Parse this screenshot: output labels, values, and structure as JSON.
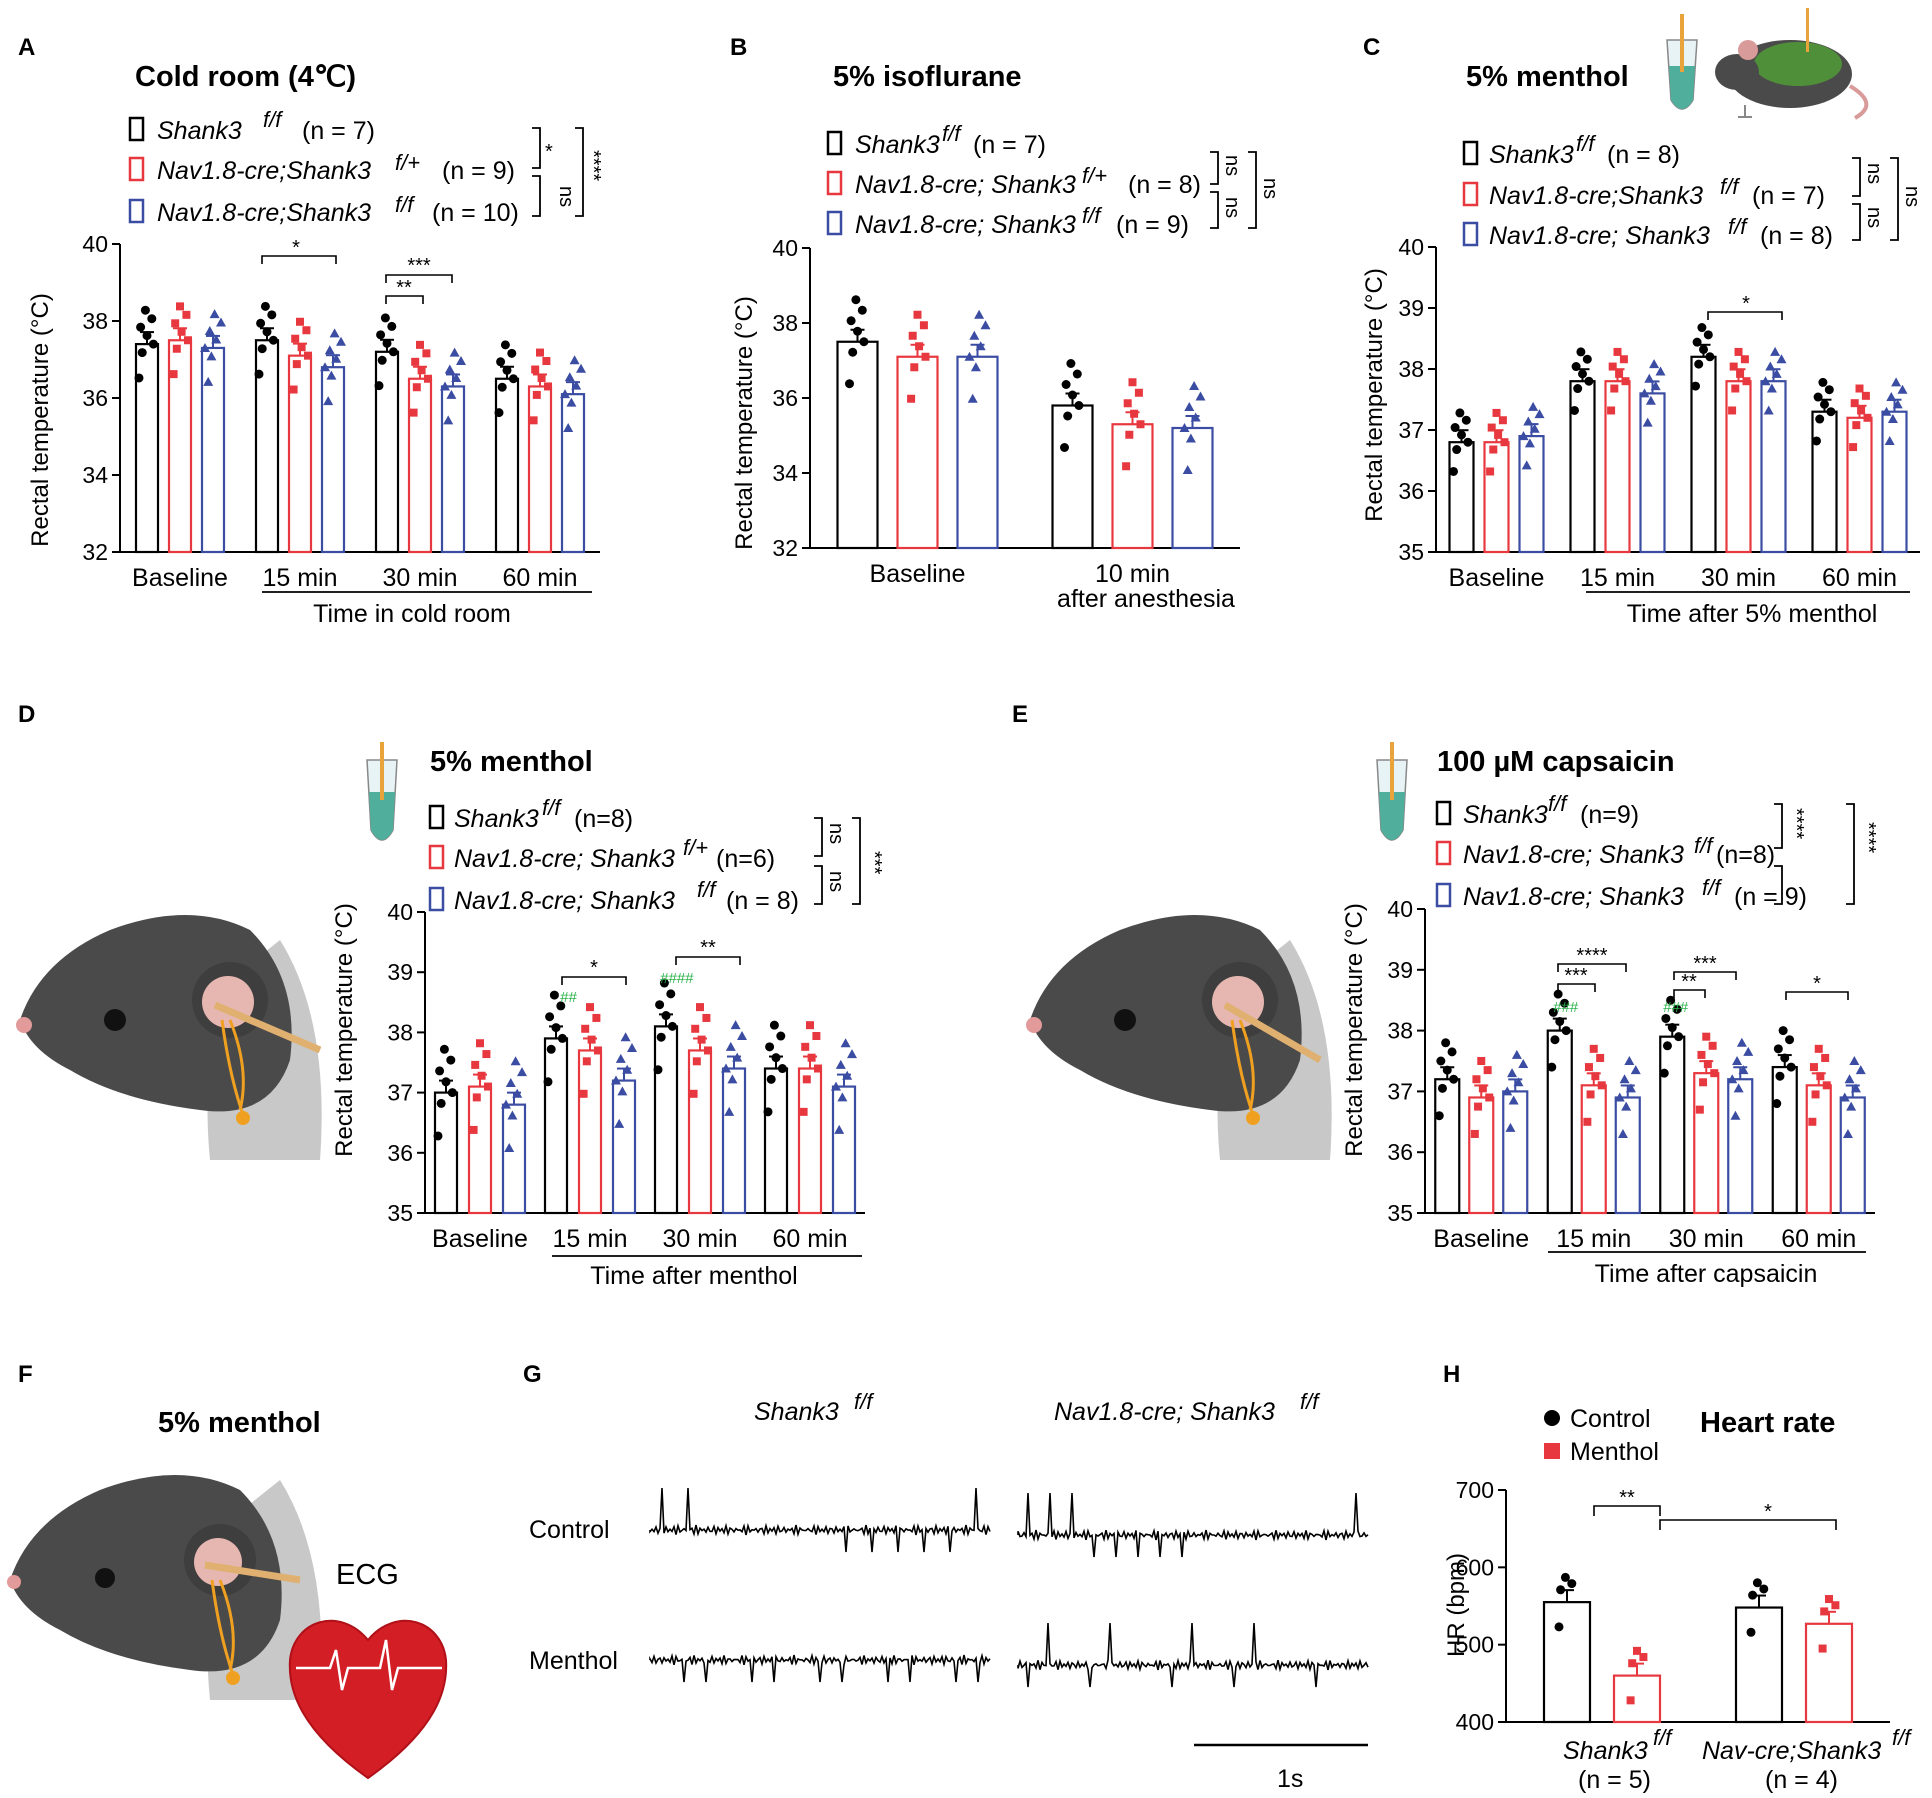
{
  "colors": {
    "black": "#000000",
    "red": "#e8383f",
    "blue": "#3b4ca3",
    "green": "#2bb34a"
  },
  "panels": {
    "A": {
      "label": "A",
      "title": "Cold room (4℃)",
      "legend": [
        {
          "gene": "Shank3",
          "sup": "f/f",
          "n": "(n = 7)"
        },
        {
          "gene": "Nav1.8-cre;Shank3",
          "sup": "f/+",
          "n": "(n = 9)"
        },
        {
          "gene": "Nav1.8-cre;Shank3",
          "sup": "f/f",
          "n": "(n = 10)"
        }
      ],
      "legend_sig": [
        "*",
        "ns",
        "****"
      ],
      "ylabel": "Rectal temperature (°C)",
      "xlabel": "Time in cold room",
      "sig": [
        "*",
        "**",
        "***"
      ]
    },
    "B": {
      "label": "B",
      "title": "5% isoflurane",
      "legend": [
        {
          "gene": "Shank3",
          "sup": "f/f",
          "n": "(n = 7)"
        },
        {
          "gene": "Nav1.8-cre; Shank3",
          "sup": "f/+",
          "n": "(n = 8)"
        },
        {
          "gene": "Nav1.8-cre; Shank3",
          "sup": "f/f",
          "n": "(n = 9)"
        }
      ],
      "legend_sig": [
        "ns",
        "ns",
        "ns"
      ],
      "ylabel": "Rectal temperature (°C)",
      "xlabel": "after anesthesia"
    },
    "C": {
      "label": "C",
      "title": "5% menthol",
      "legend": [
        {
          "gene": "Shank3",
          "sup": "f/f",
          "n": "(n = 8)"
        },
        {
          "gene": "Nav1.8-cre;Shank3",
          "sup": "f/f",
          "n": "(n = 7)"
        },
        {
          "gene": "Nav1.8-cre; Shank3",
          "sup": "f/f",
          "n": "(n = 8)"
        }
      ],
      "legend_sig": [
        "ns",
        "ns",
        "ns"
      ],
      "ylabel": "Rectal temperature (°C)",
      "xlabel": "Time after 5% menthol",
      "sig": [
        "*"
      ]
    },
    "D": {
      "label": "D",
      "title": "5% menthol",
      "legend": [
        {
          "gene": "Shank3",
          "sup": "f/f",
          "n": "(n=8)"
        },
        {
          "gene": "Nav1.8-cre; Shank3",
          "sup": "f/+",
          "n": "(n=6)"
        },
        {
          "gene": "Nav1.8-cre; Shank3",
          "sup": "f/f",
          "n": "(n = 8)"
        }
      ],
      "legend_sig": [
        "ns",
        "ns",
        "***"
      ],
      "ylabel": "Rectal temperature (°C)",
      "xlabel": "Time after menthol",
      "sig": [
        "*",
        "**"
      ],
      "hash": [
        "##",
        "####"
      ]
    },
    "E": {
      "label": "E",
      "title": "100 µM capsaicin",
      "legend": [
        {
          "gene": "Shank3",
          "sup": "f/f",
          "n": "(n=9)"
        },
        {
          "gene": "Nav1.8-cre; Shank3",
          "sup": "f/f",
          "n": "(n=8)"
        },
        {
          "gene": "Nav1.8-cre; Shank3",
          "sup": "f/f",
          "n": "(n = 9)"
        }
      ],
      "legend_sig": [
        "****",
        "****"
      ],
      "ylabel": "Rectal temperature (°C)",
      "xlabel": "Time after capsaicin",
      "sig": [
        "****",
        "***",
        "***",
        "**",
        "*"
      ],
      "hash": [
        "###",
        "###"
      ]
    },
    "F": {
      "label": "F",
      "title": "5% menthol",
      "ecg_label": "ECG"
    },
    "G": {
      "label": "G",
      "col1": "Shank3",
      "col1_sup": "f/f",
      "col2": "Nav1.8-cre; Shank3",
      "col2_sup": "f/f",
      "row1": "Control",
      "row2": "Menthol",
      "scale": "1s"
    },
    "H": {
      "label": "H",
      "title": "Heart rate",
      "legend": [
        "Control",
        "Menthol"
      ],
      "ylabel": "HR (bpm)",
      "sig": [
        "**",
        "*"
      ],
      "groups": [
        {
          "name": "Shank3",
          "sup": "f/f",
          "n": "(n = 5)"
        },
        {
          "name": "Nav-cre;Shank3",
          "sup": "f/f",
          "n": "(n = 4)"
        }
      ]
    }
  },
  "chart_data": [
    {
      "panel": "A",
      "type": "bar",
      "title": "Cold room (4℃)",
      "categories": [
        "Baseline",
        "15 min",
        "30 min",
        "60 min"
      ],
      "xlabel": "Time in cold room",
      "ylabel": "Rectal temperature (°C)",
      "ylim": [
        32,
        40
      ],
      "yticks": [
        32,
        34,
        36,
        38,
        40
      ],
      "series": [
        {
          "name": "Shank3 f/f",
          "values": [
            37.4,
            37.5,
            37.2,
            36.5
          ]
        },
        {
          "name": "Nav1.8-cre;Shank3 f/+",
          "values": [
            37.5,
            37.1,
            36.5,
            36.3
          ]
        },
        {
          "name": "Nav1.8-cre;Shank3 f/f",
          "values": [
            37.3,
            36.8,
            36.3,
            36.1
          ]
        }
      ]
    },
    {
      "panel": "B",
      "type": "bar",
      "title": "5% isoflurane",
      "categories": [
        "Baseline",
        "10 min"
      ],
      "xlabel": "after anesthesia",
      "ylabel": "Rectal temperature (°C)",
      "ylim": [
        32,
        40
      ],
      "yticks": [
        32,
        34,
        36,
        38,
        40
      ],
      "series": [
        {
          "name": "Shank3 f/f",
          "values": [
            37.5,
            35.8
          ]
        },
        {
          "name": "Nav1.8-cre; Shank3 f/+",
          "values": [
            37.1,
            35.3
          ]
        },
        {
          "name": "Nav1.8-cre; Shank3 f/f",
          "values": [
            37.1,
            35.2
          ]
        }
      ]
    },
    {
      "panel": "C",
      "type": "bar",
      "title": "5% menthol",
      "categories": [
        "Baseline",
        "15 min",
        "30 min",
        "60 min"
      ],
      "xlabel": "Time after 5% menthol",
      "ylabel": "Rectal temperature (°C)",
      "ylim": [
        35,
        40
      ],
      "yticks": [
        35,
        36,
        37,
        38,
        39,
        40
      ],
      "series": [
        {
          "name": "Shank3 f/f",
          "values": [
            36.8,
            37.8,
            38.2,
            37.3
          ]
        },
        {
          "name": "Nav1.8-cre;Shank3 f/f",
          "values": [
            36.8,
            37.8,
            37.8,
            37.2
          ]
        },
        {
          "name": "Nav1.8-cre; Shank3 f/f",
          "values": [
            36.9,
            37.6,
            37.8,
            37.3
          ]
        }
      ]
    },
    {
      "panel": "D",
      "type": "bar",
      "title": "5% menthol",
      "categories": [
        "Baseline",
        "15 min",
        "30 min",
        "60 min"
      ],
      "xlabel": "Time after menthol",
      "ylabel": "Rectal temperature (°C)",
      "ylim": [
        35,
        40
      ],
      "yticks": [
        35,
        36,
        37,
        38,
        39,
        40
      ],
      "series": [
        {
          "name": "Shank3 f/f",
          "values": [
            37.0,
            37.9,
            38.1,
            37.4
          ]
        },
        {
          "name": "Nav1.8-cre; Shank3 f/+",
          "values": [
            37.1,
            37.7,
            37.7,
            37.4
          ]
        },
        {
          "name": "Nav1.8-cre; Shank3 f/f",
          "values": [
            36.8,
            37.2,
            37.4,
            37.1
          ]
        }
      ]
    },
    {
      "panel": "E",
      "type": "bar",
      "title": "100 µM capsaicin",
      "categories": [
        "Baseline",
        "15 min",
        "30 min",
        "60 min"
      ],
      "xlabel": "Time after capsaicin",
      "ylabel": "Rectal temperature (°C)",
      "ylim": [
        35,
        40
      ],
      "yticks": [
        35,
        36,
        37,
        38,
        39,
        40
      ],
      "series": [
        {
          "name": "Shank3 f/f",
          "values": [
            37.2,
            38.0,
            37.9,
            37.4
          ]
        },
        {
          "name": "Nav1.8-cre; Shank3 f/f (n=8)",
          "values": [
            36.9,
            37.1,
            37.3,
            37.1
          ]
        },
        {
          "name": "Nav1.8-cre; Shank3 f/f (n=9)",
          "values": [
            37.0,
            36.9,
            37.2,
            36.9
          ]
        }
      ]
    },
    {
      "panel": "H",
      "type": "bar",
      "title": "Heart rate",
      "categories": [
        "Shank3 f/f",
        "Nav-cre;Shank3 f/f"
      ],
      "ylabel": "HR (bpm)",
      "ylim": [
        400,
        700
      ],
      "yticks": [
        400,
        500,
        600,
        700
      ],
      "series": [
        {
          "name": "Control",
          "values": [
            555,
            548
          ]
        },
        {
          "name": "Menthol",
          "values": [
            460,
            527
          ]
        }
      ]
    }
  ]
}
